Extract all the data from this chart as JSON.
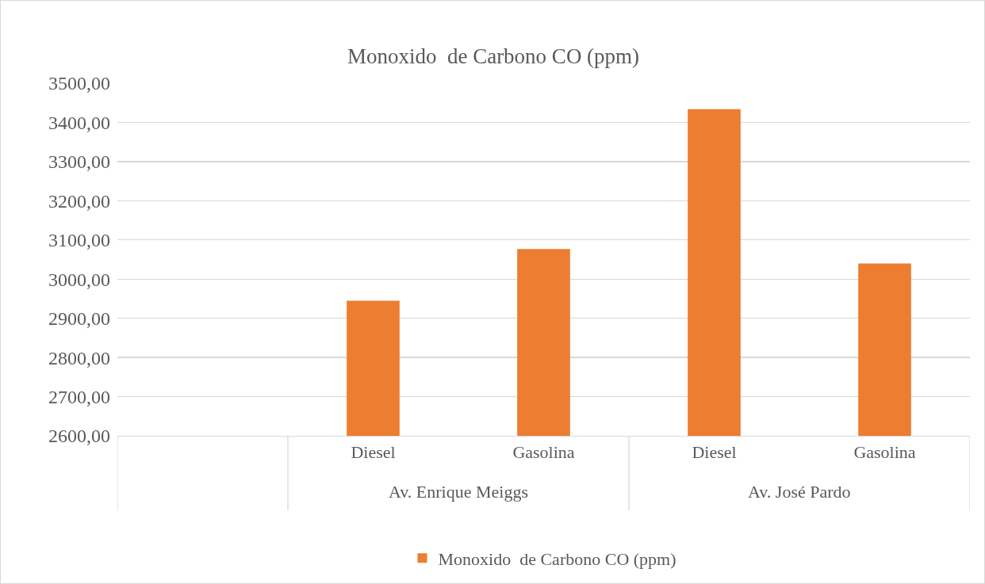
{
  "chart_data": {
    "type": "bar",
    "title": "Monoxido  de Carbono CO (ppm)",
    "categories": [
      null,
      "Diesel",
      "Gasolina",
      "Diesel",
      "Gasolina"
    ],
    "annotations": [
      "Av. Enrique Meiggs",
      "Av. José Pardo"
    ],
    "series": [
      {
        "name": "Monoxido  de Carbono CO (ppm)",
        "color": "#ed7d31",
        "values": [
          null,
          2945,
          3077,
          3434,
          3040
        ]
      }
    ],
    "ylim": [
      2600,
      3500
    ],
    "yticks": [
      {
        "value": 2600,
        "label": "2600,00"
      },
      {
        "value": 2700,
        "label": "2700,00"
      },
      {
        "value": 2800,
        "label": "2800,00"
      },
      {
        "value": 2900,
        "label": "2900,00"
      },
      {
        "value": 3000,
        "label": "3000,00"
      },
      {
        "value": 3100,
        "label": "3100,00"
      },
      {
        "value": 3200,
        "label": "3200,00"
      },
      {
        "value": 3300,
        "label": "3300,00"
      },
      {
        "value": 3400,
        "label": "3400,00"
      },
      {
        "value": 3500,
        "label": "3500,00"
      }
    ],
    "grid": "y",
    "legend": "bottom"
  }
}
